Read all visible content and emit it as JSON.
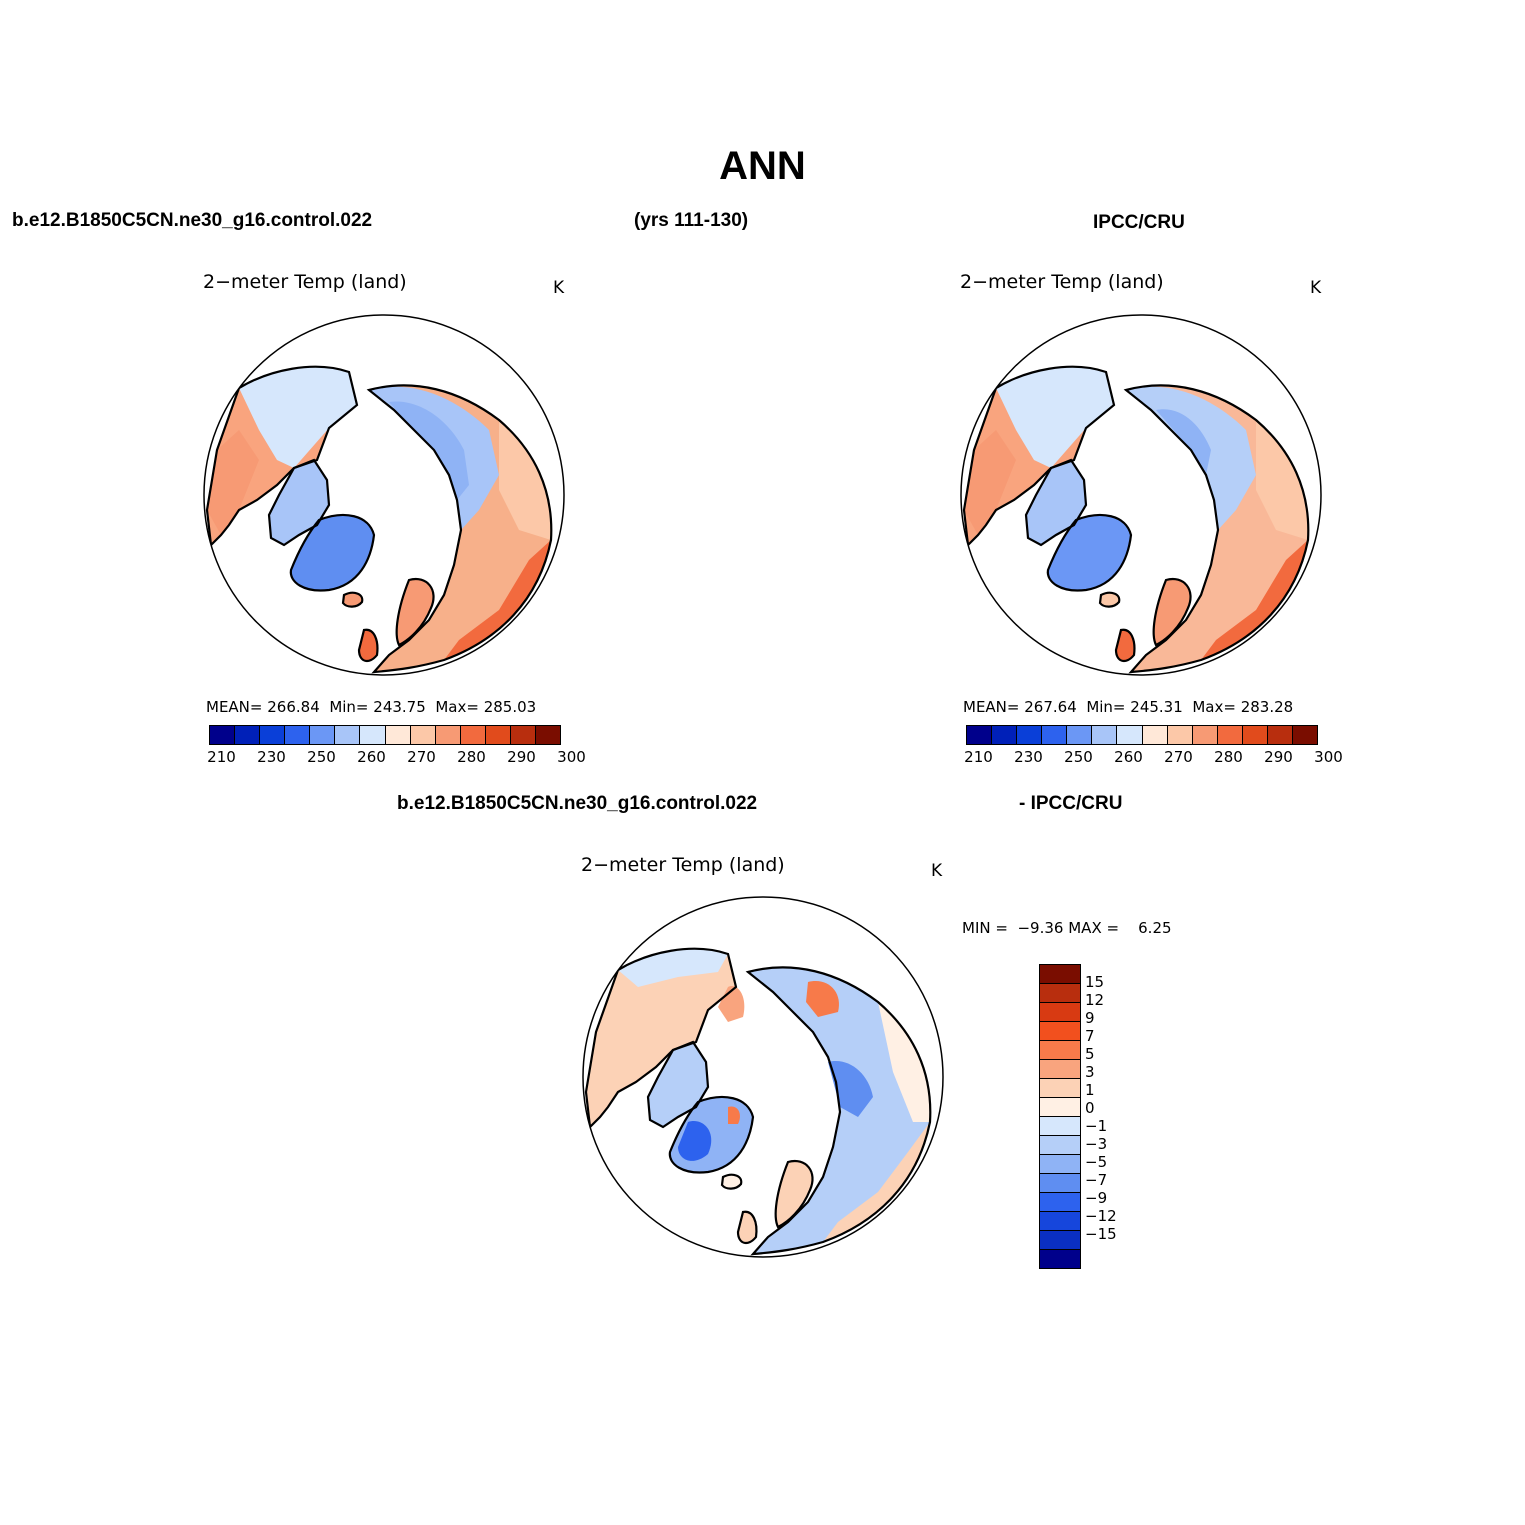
{
  "page": {
    "title": "ANN",
    "case_name": "b.e12.B1850C5CN.ne30_g16.control.022",
    "years": "(yrs 111-130)",
    "obs_name": "IPCC/CRU",
    "diff_case_name": "b.e12.B1850C5CN.ne30_g16.control.022",
    "diff_obs_name": "- IPCC/CRU"
  },
  "panels": {
    "model": {
      "title": "2−meter Temp (land)",
      "units": "K",
      "stats": {
        "mean_label": "MEAN=",
        "mean": "266.84",
        "min_label": "Min=",
        "min": "243.75",
        "max_label": "Max=",
        "max": "285.03"
      }
    },
    "obs": {
      "title": "2−meter Temp (land)",
      "units": "K",
      "stats": {
        "mean_label": "MEAN=",
        "mean": "267.64",
        "min_label": "Min=",
        "min": "245.31",
        "max_label": "Max=",
        "max": "283.28"
      }
    },
    "diff": {
      "title": "2−meter Temp (land)",
      "units": "K",
      "stats": {
        "min_label": "MIN =",
        "min": "−9.36",
        "max_label": "MAX =",
        "max": "6.25"
      }
    }
  },
  "colorbars": {
    "abs": {
      "colors": [
        "#00008b",
        "#0020b8",
        "#0a3fd8",
        "#2d62ee",
        "#6b97f5",
        "#a8c5f8",
        "#d6e7fc",
        "#ffe8d8",
        "#fcc8a8",
        "#f79a74",
        "#f26a3e",
        "#e14b1c",
        "#b82e0e",
        "#7a0d00"
      ],
      "labels": [
        "210",
        "230",
        "250",
        "260",
        "270",
        "280",
        "290",
        "300"
      ]
    },
    "diff": {
      "colors": [
        "#7a0d00",
        "#b82e0e",
        "#d83a12",
        "#f2501e",
        "#f77a4a",
        "#f9a47e",
        "#fcd2b6",
        "#fff0e4",
        "#d6e7fc",
        "#b5cff8",
        "#8fb3f5",
        "#5f8ef1",
        "#2d62ee",
        "#1646dc",
        "#0a2fc2",
        "#00008b"
      ],
      "labels": [
        "15",
        "12",
        "9",
        "7",
        "5",
        "3",
        "1",
        "0",
        "−1",
        "−3",
        "−5",
        "−7",
        "−9",
        "−12",
        "−15"
      ]
    }
  }
}
